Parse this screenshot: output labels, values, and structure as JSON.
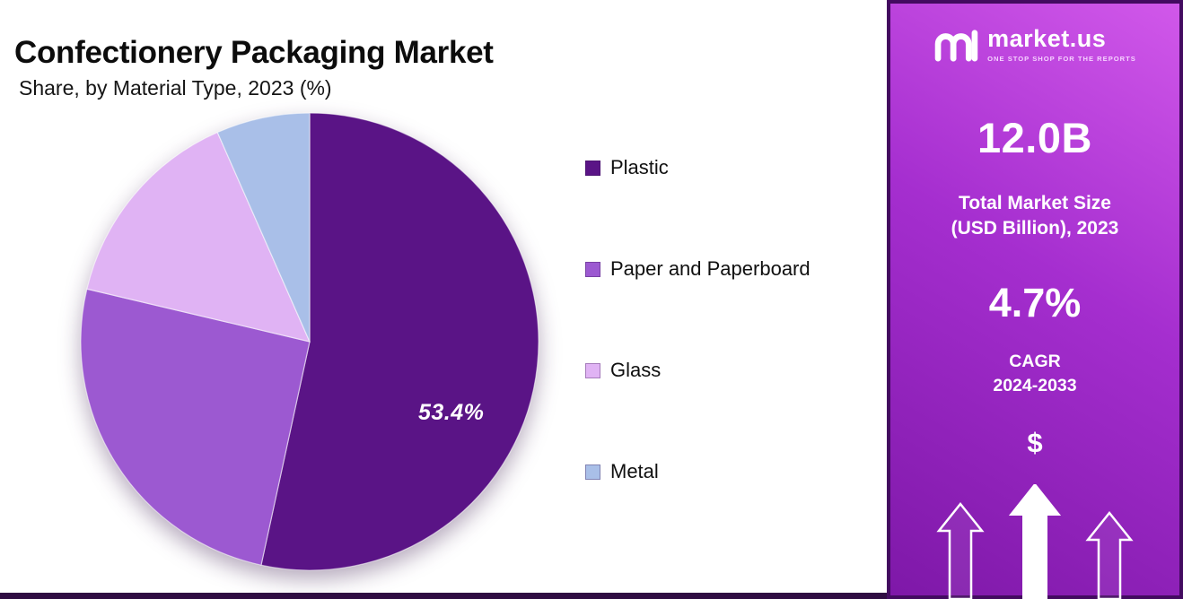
{
  "page": {
    "title": "Confectionery Packaging Market",
    "subtitle": "Share, by Material Type, 2023 (%)"
  },
  "chart_data": {
    "type": "pie",
    "title": "Confectionery Packaging Market",
    "subtitle": "Share, by Material Type, 2023 (%)",
    "year": "2023",
    "unit": "%",
    "labels": [
      "Plastic",
      "Paper and Paperboard",
      "Glass",
      "Metal"
    ],
    "values": [
      53.4,
      25.3,
      14.7,
      6.6
    ],
    "colors": [
      "#5a1486",
      "#9c59d1",
      "#e0b3f4",
      "#a9bfe8"
    ],
    "data_label": {
      "slice": "Plastic",
      "text": "53.4%"
    },
    "legend_position": "right",
    "start_angle_deg": 0,
    "direction": "clockwise"
  },
  "sidebar": {
    "gradient": [
      "#d158ea",
      "#a52ecf",
      "#7e18a8"
    ],
    "border_color": "#430b60",
    "brand": {
      "name": "market.us",
      "tagline": "ONE STOP SHOP FOR THE REPORTS"
    },
    "market_size": {
      "value": "12.0B",
      "label": [
        "Total Market Size",
        "(USD Billion), 2023"
      ]
    },
    "cagr": {
      "value": "4.7%",
      "label": [
        "CAGR",
        "2024-2033"
      ]
    },
    "dollar_symbol": "$"
  }
}
